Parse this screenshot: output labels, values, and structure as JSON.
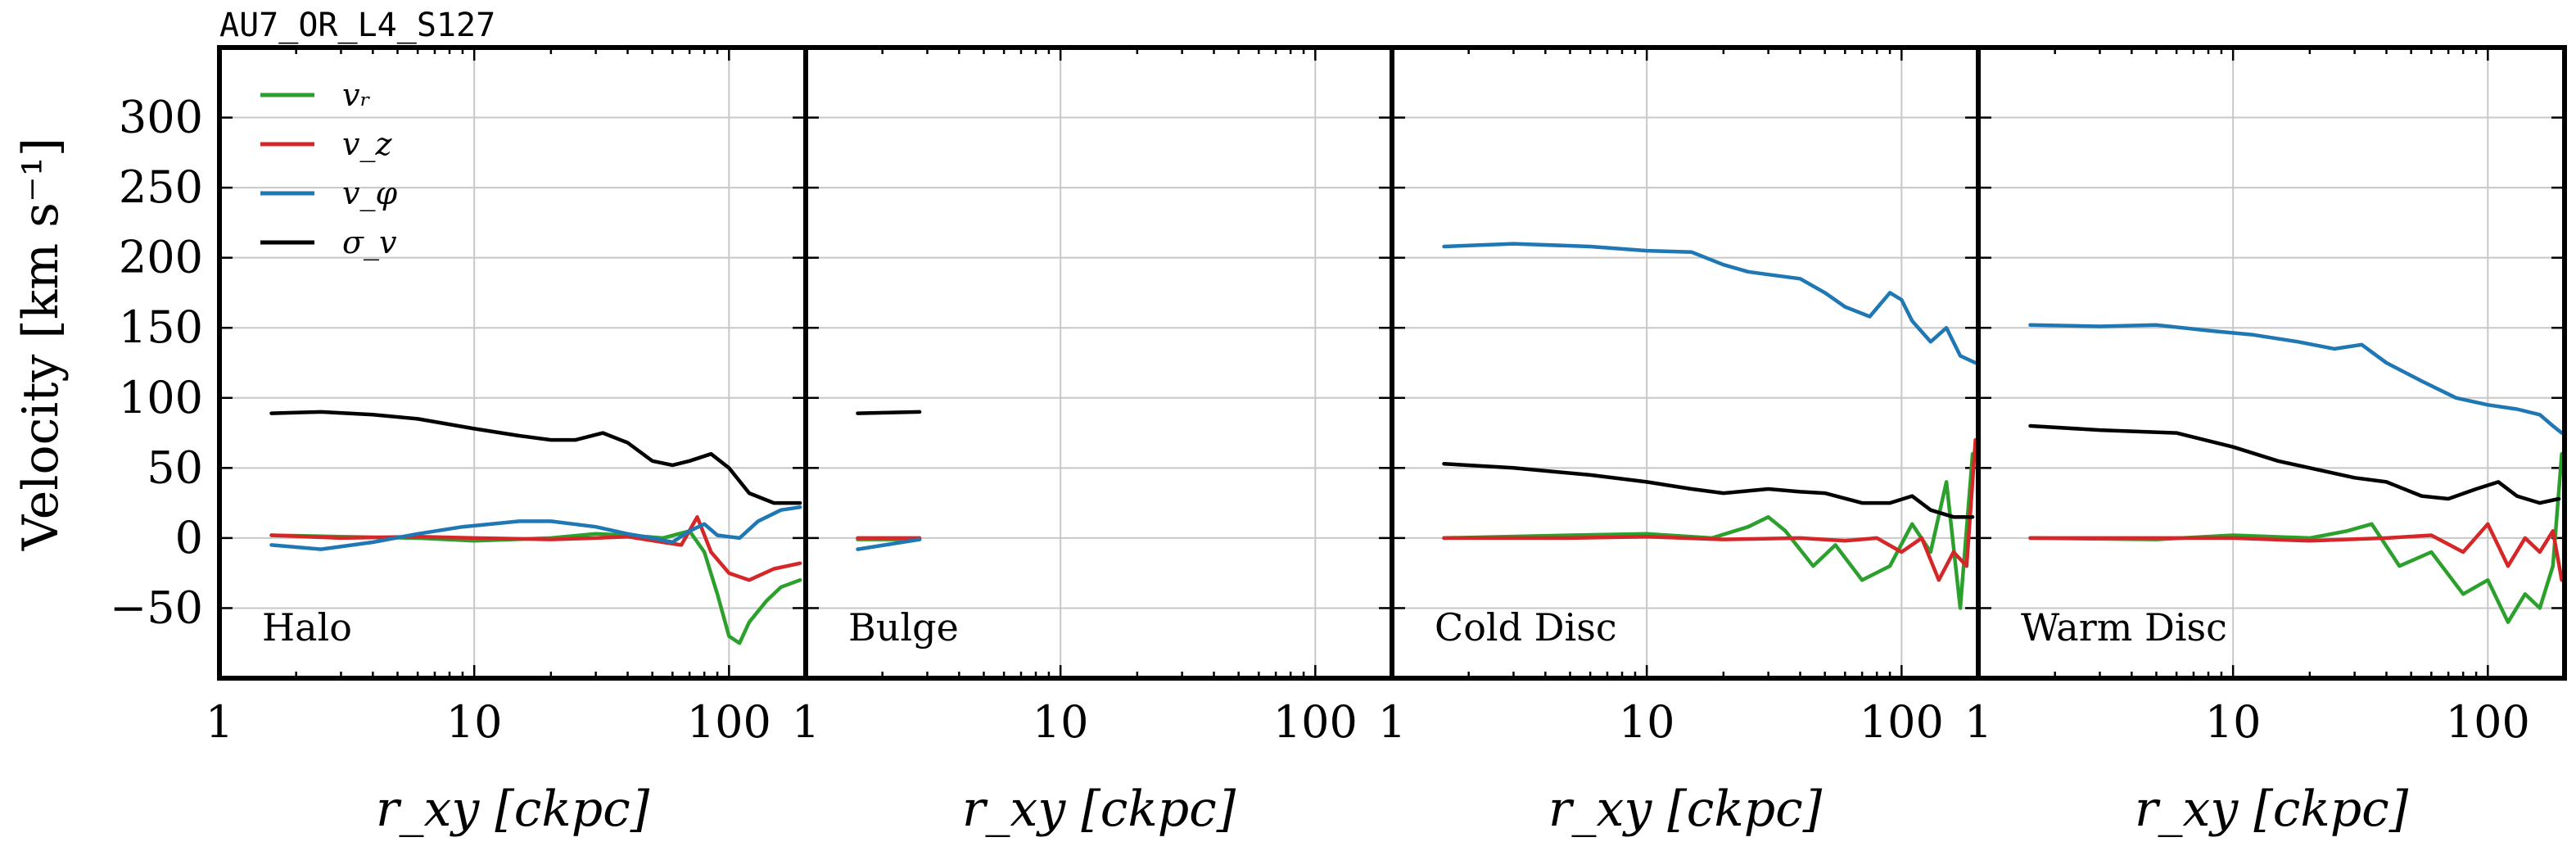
{
  "figure_title": "AU7_OR_L4_S127",
  "chart_data": {
    "type": "line",
    "layout": "four side-by-side panels sharing y axis",
    "ylabel": "Velocity [km s⁻¹]",
    "xlabel": "r_xy [ckpc]",
    "x_scale": "log",
    "xlim": [
      1,
      200
    ],
    "ylim": [
      -100,
      350
    ],
    "y_ticks": [
      -50,
      0,
      50,
      100,
      150,
      200,
      250,
      300
    ],
    "y_tick_labels": [
      "−50",
      "0",
      "50",
      "100",
      "150",
      "200",
      "250",
      "300"
    ],
    "x_ticks": [
      1,
      10,
      100
    ],
    "x_tick_labels": [
      "1",
      "10",
      "100"
    ],
    "grid": true,
    "legend": {
      "placement": "top-left of first panel",
      "entries": [
        {
          "key": "v_r",
          "label": "vᵣ",
          "color": "#2ca02c"
        },
        {
          "key": "v_z",
          "label": "v_z",
          "color": "#d62728"
        },
        {
          "key": "v_phi",
          "label": "v_φ",
          "color": "#1f77b4"
        },
        {
          "key": "sigma_v",
          "label": "σ_v",
          "color": "#000000"
        }
      ]
    },
    "panels": [
      {
        "label": "Halo",
        "series": {
          "v_r": [
            [
              1.6,
              2
            ],
            [
              3,
              1
            ],
            [
              6,
              0
            ],
            [
              10,
              -2
            ],
            [
              20,
              0
            ],
            [
              30,
              3
            ],
            [
              40,
              2
            ],
            [
              55,
              0
            ],
            [
              70,
              5
            ],
            [
              80,
              -10
            ],
            [
              90,
              -40
            ],
            [
              100,
              -70
            ],
            [
              110,
              -75
            ],
            [
              120,
              -60
            ],
            [
              140,
              -45
            ],
            [
              160,
              -35
            ],
            [
              190,
              -30
            ]
          ],
          "v_z": [
            [
              1.6,
              2
            ],
            [
              3,
              0
            ],
            [
              6,
              1
            ],
            [
              10,
              0
            ],
            [
              20,
              -1
            ],
            [
              30,
              0
            ],
            [
              40,
              1
            ],
            [
              55,
              -3
            ],
            [
              65,
              -5
            ],
            [
              75,
              15
            ],
            [
              85,
              -10
            ],
            [
              100,
              -25
            ],
            [
              120,
              -30
            ],
            [
              150,
              -22
            ],
            [
              190,
              -18
            ]
          ],
          "v_phi": [
            [
              1.6,
              -5
            ],
            [
              2.5,
              -8
            ],
            [
              4,
              -3
            ],
            [
              6,
              3
            ],
            [
              9,
              8
            ],
            [
              15,
              12
            ],
            [
              20,
              12
            ],
            [
              30,
              8
            ],
            [
              40,
              3
            ],
            [
              50,
              0
            ],
            [
              60,
              -3
            ],
            [
              70,
              5
            ],
            [
              80,
              10
            ],
            [
              90,
              2
            ],
            [
              110,
              0
            ],
            [
              130,
              12
            ],
            [
              160,
              20
            ],
            [
              190,
              22
            ]
          ],
          "sigma_v": [
            [
              1.6,
              89
            ],
            [
              2.5,
              90
            ],
            [
              4,
              88
            ],
            [
              6,
              85
            ],
            [
              10,
              78
            ],
            [
              15,
              73
            ],
            [
              20,
              70
            ],
            [
              25,
              70
            ],
            [
              32,
              75
            ],
            [
              40,
              68
            ],
            [
              50,
              55
            ],
            [
              60,
              52
            ],
            [
              70,
              55
            ],
            [
              85,
              60
            ],
            [
              100,
              50
            ],
            [
              120,
              32
            ],
            [
              150,
              25
            ],
            [
              190,
              25
            ]
          ]
        }
      },
      {
        "label": "Bulge",
        "series": {
          "v_r": [
            [
              1.6,
              -1
            ],
            [
              2.8,
              -1
            ]
          ],
          "v_z": [
            [
              1.6,
              0
            ],
            [
              2.8,
              0
            ]
          ],
          "v_phi": [
            [
              1.6,
              -8
            ],
            [
              2.8,
              -1
            ]
          ],
          "sigma_v": [
            [
              1.6,
              89
            ],
            [
              2.8,
              90
            ]
          ]
        }
      },
      {
        "label": "Cold Disc",
        "series": {
          "v_r": [
            [
              1.6,
              0
            ],
            [
              5,
              2
            ],
            [
              10,
              3
            ],
            [
              18,
              0
            ],
            [
              25,
              8
            ],
            [
              30,
              15
            ],
            [
              35,
              5
            ],
            [
              45,
              -20
            ],
            [
              55,
              -5
            ],
            [
              70,
              -30
            ],
            [
              90,
              -20
            ],
            [
              110,
              10
            ],
            [
              130,
              -10
            ],
            [
              150,
              40
            ],
            [
              170,
              -50
            ],
            [
              190,
              60
            ]
          ],
          "v_z": [
            [
              1.6,
              0
            ],
            [
              5,
              0
            ],
            [
              10,
              1
            ],
            [
              20,
              -1
            ],
            [
              40,
              0
            ],
            [
              60,
              -2
            ],
            [
              80,
              0
            ],
            [
              100,
              -10
            ],
            [
              120,
              0
            ],
            [
              140,
              -30
            ],
            [
              160,
              -10
            ],
            [
              180,
              -20
            ],
            [
              195,
              70
            ]
          ],
          "v_phi": [
            [
              1.6,
              208
            ],
            [
              3,
              210
            ],
            [
              6,
              208
            ],
            [
              10,
              205
            ],
            [
              15,
              204
            ],
            [
              20,
              195
            ],
            [
              25,
              190
            ],
            [
              30,
              188
            ],
            [
              40,
              185
            ],
            [
              50,
              175
            ],
            [
              60,
              165
            ],
            [
              75,
              158
            ],
            [
              90,
              175
            ],
            [
              100,
              170
            ],
            [
              110,
              155
            ],
            [
              130,
              140
            ],
            [
              150,
              150
            ],
            [
              170,
              130
            ],
            [
              195,
              125
            ]
          ],
          "sigma_v": [
            [
              1.6,
              53
            ],
            [
              3,
              50
            ],
            [
              6,
              45
            ],
            [
              10,
              40
            ],
            [
              15,
              35
            ],
            [
              20,
              32
            ],
            [
              30,
              35
            ],
            [
              40,
              33
            ],
            [
              50,
              32
            ],
            [
              70,
              25
            ],
            [
              90,
              25
            ],
            [
              110,
              30
            ],
            [
              130,
              20
            ],
            [
              160,
              15
            ],
            [
              190,
              15
            ]
          ]
        }
      },
      {
        "label": "Warm Disc",
        "series": {
          "v_r": [
            [
              1.6,
              0
            ],
            [
              5,
              -1
            ],
            [
              10,
              2
            ],
            [
              20,
              0
            ],
            [
              28,
              5
            ],
            [
              35,
              10
            ],
            [
              45,
              -20
            ],
            [
              60,
              -10
            ],
            [
              80,
              -40
            ],
            [
              100,
              -30
            ],
            [
              120,
              -60
            ],
            [
              140,
              -40
            ],
            [
              160,
              -50
            ],
            [
              180,
              -20
            ],
            [
              195,
              60
            ]
          ],
          "v_z": [
            [
              1.6,
              0
            ],
            [
              5,
              0
            ],
            [
              10,
              0
            ],
            [
              20,
              -2
            ],
            [
              40,
              0
            ],
            [
              60,
              2
            ],
            [
              80,
              -10
            ],
            [
              100,
              10
            ],
            [
              120,
              -20
            ],
            [
              140,
              0
            ],
            [
              160,
              -10
            ],
            [
              180,
              5
            ],
            [
              195,
              -30
            ]
          ],
          "v_phi": [
            [
              1.6,
              152
            ],
            [
              3,
              151
            ],
            [
              5,
              152
            ],
            [
              8,
              148
            ],
            [
              12,
              145
            ],
            [
              18,
              140
            ],
            [
              25,
              135
            ],
            [
              32,
              138
            ],
            [
              40,
              125
            ],
            [
              55,
              112
            ],
            [
              75,
              100
            ],
            [
              100,
              95
            ],
            [
              130,
              92
            ],
            [
              160,
              88
            ],
            [
              180,
              80
            ],
            [
              195,
              75
            ]
          ],
          "sigma_v": [
            [
              1.6,
              80
            ],
            [
              3,
              77
            ],
            [
              6,
              75
            ],
            [
              10,
              65
            ],
            [
              15,
              55
            ],
            [
              20,
              50
            ],
            [
              30,
              43
            ],
            [
              40,
              40
            ],
            [
              55,
              30
            ],
            [
              70,
              28
            ],
            [
              90,
              35
            ],
            [
              110,
              40
            ],
            [
              130,
              30
            ],
            [
              160,
              25
            ],
            [
              190,
              28
            ]
          ]
        }
      }
    ]
  }
}
